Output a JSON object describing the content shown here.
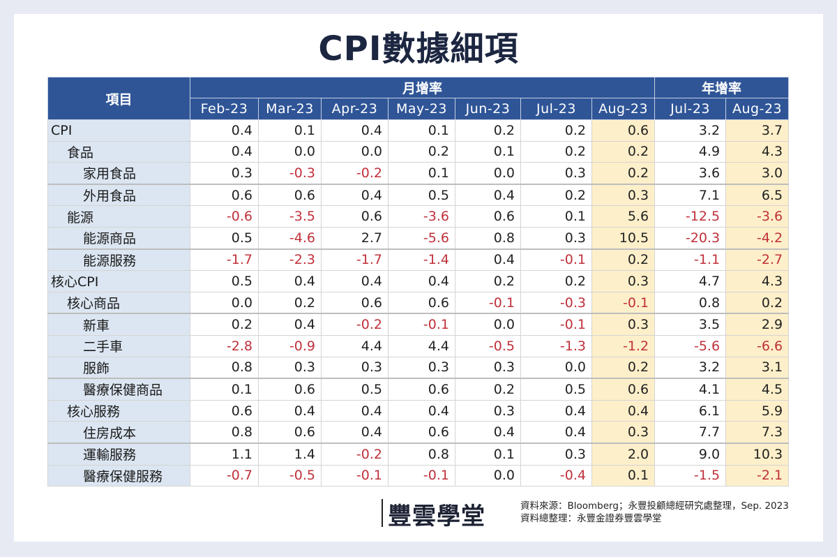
{
  "title": "CPI數據細項",
  "table": {
    "item_header": "項目",
    "group_headers": {
      "mom": "月增率",
      "yoy": "年增率"
    },
    "mom_months": [
      "Feb-23",
      "Mar-23",
      "Apr-23",
      "May-23",
      "Jun-23",
      "Jul-23",
      "Aug-23"
    ],
    "yoy_months": [
      "Jul-23",
      "Aug-23"
    ],
    "rows": [
      {
        "label": "CPI",
        "level": 0,
        "mom": [
          "0.4",
          "0.1",
          "0.4",
          "0.1",
          "0.2",
          "0.2",
          "0.6"
        ],
        "yoy": [
          "3.2",
          "3.7"
        ]
      },
      {
        "label": "食品",
        "level": 1,
        "mom": [
          "0.4",
          "0.0",
          "0.0",
          "0.2",
          "0.1",
          "0.2",
          "0.2"
        ],
        "yoy": [
          "4.9",
          "4.3"
        ]
      },
      {
        "label": "家用食品",
        "level": 2,
        "mom": [
          "0.3",
          "-0.3",
          "-0.2",
          "0.1",
          "0.0",
          "0.3",
          "0.2"
        ],
        "yoy": [
          "3.6",
          "3.0"
        ]
      },
      {
        "label": "外用食品",
        "level": 2,
        "mom": [
          "0.6",
          "0.6",
          "0.4",
          "0.5",
          "0.4",
          "0.2",
          "0.3"
        ],
        "yoy": [
          "7.1",
          "6.5"
        ]
      },
      {
        "label": "能源",
        "level": 1,
        "mom": [
          "-0.6",
          "-3.5",
          "0.6",
          "-3.6",
          "0.6",
          "0.1",
          "5.6"
        ],
        "yoy": [
          "-12.5",
          "-3.6"
        ]
      },
      {
        "label": "能源商品",
        "level": 2,
        "mom": [
          "0.5",
          "-4.6",
          "2.7",
          "-5.6",
          "0.8",
          "0.3",
          "10.5"
        ],
        "yoy": [
          "-20.3",
          "-4.2"
        ]
      },
      {
        "label": "能源服務",
        "level": 2,
        "mom": [
          "-1.7",
          "-2.3",
          "-1.7",
          "-1.4",
          "0.4",
          "-0.1",
          "0.2"
        ],
        "yoy": [
          "-1.1",
          "-2.7"
        ]
      },
      {
        "label": "核心CPI",
        "level": 0,
        "mom": [
          "0.5",
          "0.4",
          "0.4",
          "0.4",
          "0.2",
          "0.2",
          "0.3"
        ],
        "yoy": [
          "4.7",
          "4.3"
        ]
      },
      {
        "label": "核心商品",
        "level": 1,
        "mom": [
          "0.0",
          "0.2",
          "0.6",
          "0.6",
          "-0.1",
          "-0.3",
          "-0.1"
        ],
        "yoy": [
          "0.8",
          "0.2"
        ]
      },
      {
        "label": "新車",
        "level": 2,
        "mom": [
          "0.2",
          "0.4",
          "-0.2",
          "-0.1",
          "0.0",
          "-0.1",
          "0.3"
        ],
        "yoy": [
          "3.5",
          "2.9"
        ]
      },
      {
        "label": "二手車",
        "level": 2,
        "mom": [
          "-2.8",
          "-0.9",
          "4.4",
          "4.4",
          "-0.5",
          "-1.3",
          "-1.2"
        ],
        "yoy": [
          "-5.6",
          "-6.6"
        ]
      },
      {
        "label": "服飾",
        "level": 2,
        "mom": [
          "0.8",
          "0.3",
          "0.3",
          "0.3",
          "0.3",
          "0.0",
          "0.2"
        ],
        "yoy": [
          "3.2",
          "3.1"
        ]
      },
      {
        "label": "醫療保健商品",
        "level": 2,
        "mom": [
          "0.1",
          "0.6",
          "0.5",
          "0.6",
          "0.2",
          "0.5",
          "0.6"
        ],
        "yoy": [
          "4.1",
          "4.5"
        ]
      },
      {
        "label": "核心服務",
        "level": 1,
        "mom": [
          "0.6",
          "0.4",
          "0.4",
          "0.4",
          "0.3",
          "0.4",
          "0.4"
        ],
        "yoy": [
          "6.1",
          "5.9"
        ]
      },
      {
        "label": "住房成本",
        "level": 2,
        "mom": [
          "0.8",
          "0.6",
          "0.4",
          "0.6",
          "0.4",
          "0.4",
          "0.3"
        ],
        "yoy": [
          "7.7",
          "7.3"
        ]
      },
      {
        "label": "運輸服務",
        "level": 2,
        "mom": [
          "1.1",
          "1.4",
          "-0.2",
          "0.8",
          "0.1",
          "0.3",
          "2.0"
        ],
        "yoy": [
          "9.0",
          "10.3"
        ]
      },
      {
        "label": "醫療保健服務",
        "level": 2,
        "mom": [
          "-0.7",
          "-0.5",
          "-0.1",
          "-0.1",
          "0.0",
          "-0.4",
          "0.1"
        ],
        "yoy": [
          "-1.5",
          "-2.1"
        ]
      }
    ]
  },
  "footer": {
    "logo_text": "豐雲學堂",
    "source_line1": "資料來源：Bloomberg；永豐投顧總經研究處整理，Sep. 2023",
    "source_line2": "資料總整理：永豐金證券豐雲學堂"
  },
  "colors": {
    "header_bg": "#2f5597",
    "label_bg": "#dce6f2",
    "highlight_bg": "#fdefc9",
    "negative_text": "#c0303a",
    "title_text": "#1c2640",
    "page_bg": "#e8eaf3"
  },
  "chart_data": {
    "type": "table",
    "title": "CPI數據細項",
    "columns": [
      "項目",
      "月增率 Feb-23",
      "月增率 Mar-23",
      "月增率 Apr-23",
      "月增率 May-23",
      "月增率 Jun-23",
      "月增率 Jul-23",
      "月增率 Aug-23",
      "年增率 Jul-23",
      "年增率 Aug-23"
    ],
    "highlighted_columns": [
      "月增率 Aug-23",
      "年增率 Aug-23"
    ],
    "unit": "%",
    "rows": [
      [
        "CPI",
        0.4,
        0.1,
        0.4,
        0.1,
        0.2,
        0.2,
        0.6,
        3.2,
        3.7
      ],
      [
        "食品",
        0.4,
        0.0,
        0.0,
        0.2,
        0.1,
        0.2,
        0.2,
        4.9,
        4.3
      ],
      [
        "家用食品",
        0.3,
        -0.3,
        -0.2,
        0.1,
        0.0,
        0.3,
        0.2,
        3.6,
        3.0
      ],
      [
        "外用食品",
        0.6,
        0.6,
        0.4,
        0.5,
        0.4,
        0.2,
        0.3,
        7.1,
        6.5
      ],
      [
        "能源",
        -0.6,
        -3.5,
        0.6,
        -3.6,
        0.6,
        0.1,
        5.6,
        -12.5,
        -3.6
      ],
      [
        "能源商品",
        0.5,
        -4.6,
        2.7,
        -5.6,
        0.8,
        0.3,
        10.5,
        -20.3,
        -4.2
      ],
      [
        "能源服務",
        -1.7,
        -2.3,
        -1.7,
        -1.4,
        0.4,
        -0.1,
        0.2,
        -1.1,
        -2.7
      ],
      [
        "核心CPI",
        0.5,
        0.4,
        0.4,
        0.4,
        0.2,
        0.2,
        0.3,
        4.7,
        4.3
      ],
      [
        "核心商品",
        0.0,
        0.2,
        0.6,
        0.6,
        -0.1,
        -0.3,
        -0.1,
        0.8,
        0.2
      ],
      [
        "新車",
        0.2,
        0.4,
        -0.2,
        -0.1,
        0.0,
        -0.1,
        0.3,
        3.5,
        2.9
      ],
      [
        "二手車",
        -2.8,
        -0.9,
        4.4,
        4.4,
        -0.5,
        -1.3,
        -1.2,
        -5.6,
        -6.6
      ],
      [
        "服飾",
        0.8,
        0.3,
        0.3,
        0.3,
        0.3,
        0.0,
        0.2,
        3.2,
        3.1
      ],
      [
        "醫療保健商品",
        0.1,
        0.6,
        0.5,
        0.6,
        0.2,
        0.5,
        0.6,
        4.1,
        4.5
      ],
      [
        "核心服務",
        0.6,
        0.4,
        0.4,
        0.4,
        0.3,
        0.4,
        0.4,
        6.1,
        5.9
      ],
      [
        "住房成本",
        0.8,
        0.6,
        0.4,
        0.6,
        0.4,
        0.4,
        0.3,
        7.7,
        7.3
      ],
      [
        "運輸服務",
        1.1,
        1.4,
        -0.2,
        0.8,
        0.1,
        0.3,
        2.0,
        9.0,
        10.3
      ],
      [
        "醫療保健服務",
        -0.7,
        -0.5,
        -0.1,
        -0.1,
        0.0,
        -0.4,
        0.1,
        -1.5,
        -2.1
      ]
    ]
  }
}
